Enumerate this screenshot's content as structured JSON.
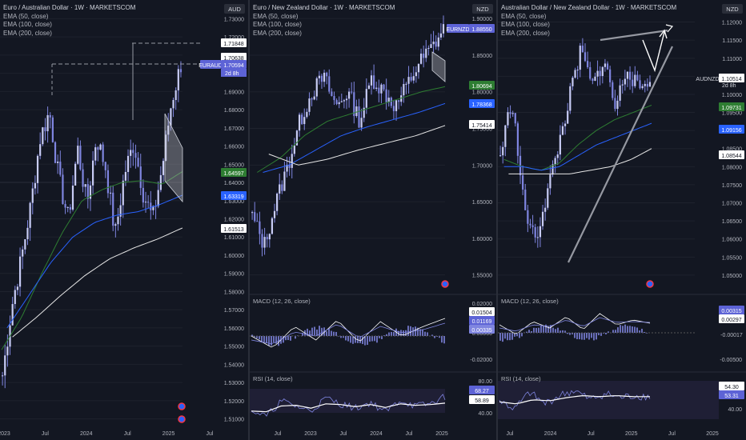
{
  "theme": {
    "bg": "#131722",
    "candle": "#7f85e0",
    "ema50": "#2e7d32",
    "ema100": "#2962ff",
    "ema200": "#e6e6e6",
    "price_tag": "#5d63d6",
    "grid": "#1e222d"
  },
  "panels": [
    {
      "title": "Euro / Australian Dollar · 1W · MARKETSCOM",
      "indicators": [
        "EMA (50, close)",
        "EMA (100, close)",
        "EMA (200, close)"
      ],
      "currency": "AUD",
      "symbol_tag": "EURAUD",
      "countdown": "2d 8h",
      "axis_ticks": [
        "1.73000",
        "1.72000",
        "1.71000",
        "1.70000",
        "1.69000",
        "1.68000",
        "1.67000",
        "1.66000",
        "1.65000",
        "1.64000",
        "1.63000",
        "1.62000",
        "1.61000",
        "1.60000",
        "1.59000",
        "1.58000",
        "1.57000",
        "1.56000",
        "1.55000",
        "1.54000",
        "1.53000",
        "1.52000",
        "1.51000"
      ],
      "x_labels": [
        "2023",
        "Jul",
        "2024",
        "Jul",
        "2025",
        "Jul"
      ],
      "labels": [
        {
          "text": "1.71848",
          "bg": "#ffffff",
          "fg": "#131722"
        },
        {
          "text": "1.70638",
          "bg": "#ffffff",
          "fg": "#131722"
        },
        {
          "text": "1.70594",
          "bg": "#5d63d6",
          "fg": "#ffffff"
        },
        {
          "text": "1.64597",
          "bg": "#2e7d32",
          "fg": "#ffffff"
        },
        {
          "text": "1.63319",
          "bg": "#2962ff",
          "fg": "#ffffff"
        },
        {
          "text": "1.61513",
          "bg": "#ffffff",
          "fg": "#131722"
        }
      ]
    },
    {
      "title": "Euro / New Zealand Dollar · 1W · MARKETSCOM",
      "indicators": [
        "EMA (50, close)",
        "EMA (100, close)",
        "EMA (200, close)"
      ],
      "currency": "NZD",
      "symbol_tag": "EURNZD",
      "axis_ticks": [
        "1.90000",
        "1.85000",
        "1.80000",
        "1.75000",
        "1.70000",
        "1.65000",
        "1.60000",
        "1.55000"
      ],
      "x_labels": [
        "Jul",
        "2023",
        "Jul",
        "2024",
        "Jul",
        "2025"
      ],
      "labels": [
        {
          "text": "1.88550",
          "bg": "#5d63d6",
          "fg": "#ffffff"
        },
        {
          "text": "1.80694",
          "bg": "#2e7d32",
          "fg": "#ffffff"
        },
        {
          "text": "1.78368",
          "bg": "#2962ff",
          "fg": "#ffffff"
        },
        {
          "text": "1.75414",
          "bg": "#ffffff",
          "fg": "#131722"
        }
      ],
      "macd": {
        "title": "MACD (12, 26, close)",
        "ticks": [
          "0.02000",
          "0.00000",
          "-0.02000"
        ],
        "labels": [
          {
            "text": "0.01504",
            "bg": "#ffffff",
            "fg": "#131722"
          },
          {
            "text": "0.01169",
            "bg": "#5d63d6",
            "fg": "#ffffff"
          },
          {
            "text": "0.00335",
            "bg": "#7f85e0",
            "fg": "#ffffff"
          }
        ]
      },
      "rsi": {
        "title": "RSI (14, close)",
        "ticks": [
          "80.00",
          "40.00"
        ],
        "labels": [
          {
            "text": "68.27",
            "bg": "#5d63d6",
            "fg": "#ffffff"
          },
          {
            "text": "58.89",
            "bg": "#ffffff",
            "fg": "#131722"
          }
        ]
      }
    },
    {
      "title": "Australian Dollar / New Zealand Dollar · 1W · MARKETSCOM",
      "indicators": [
        "EMA (50, close)",
        "EMA (100, close)",
        "EMA (200, close)"
      ],
      "currency": "NZD",
      "symbol_tag": "AUDNZD",
      "countdown": "2d 8h",
      "axis_ticks": [
        "1.12000",
        "1.11500",
        "1.11000",
        "1.10500",
        "1.10000",
        "1.09500",
        "1.09000",
        "1.08500",
        "1.08000",
        "1.07500",
        "1.07000",
        "1.06500",
        "1.06000",
        "1.05500",
        "1.05000"
      ],
      "x_labels": [
        "Jul",
        "2024",
        "Jul",
        "2025",
        "Jul",
        "2025"
      ],
      "labels": [
        {
          "text": "1.10514",
          "bg": "#ffffff",
          "fg": "#131722"
        },
        {
          "text": "1.09731",
          "bg": "#2e7d32",
          "fg": "#ffffff"
        },
        {
          "text": "1.09156",
          "bg": "#2962ff",
          "fg": "#ffffff"
        },
        {
          "text": "1.08544",
          "bg": "#ffffff",
          "fg": "#131722"
        }
      ],
      "macd": {
        "title": "MACD (12, 26, close)",
        "ticks": [
          "0.00000",
          "-0.00500"
        ],
        "labels": [
          {
            "text": "0.00315",
            "bg": "#5d63d6",
            "fg": "#ffffff"
          },
          {
            "text": "0.00297",
            "bg": "#ffffff",
            "fg": "#131722"
          },
          {
            "text": "-0.00017",
            "bg": "#131722",
            "fg": "#b2b5be"
          }
        ]
      },
      "rsi": {
        "title": "RSI (14, close)",
        "ticks": [
          "40.00"
        ],
        "labels": [
          {
            "text": "54.30",
            "bg": "#ffffff",
            "fg": "#131722"
          },
          {
            "text": "53.31",
            "bg": "#5d63d6",
            "fg": "#ffffff"
          }
        ]
      }
    }
  ],
  "chart_data": [
    {
      "type": "line",
      "title": "Euro / Australian Dollar · 1W · MARKETSCOM",
      "series": [
        {
          "name": "EURAUD",
          "values": [
            1.534,
            1.572,
            1.598,
            1.627,
            1.664,
            1.679,
            1.642,
            1.62,
            1.659,
            1.628,
            1.665,
            1.648,
            1.611,
            1.645,
            1.662,
            1.634,
            1.62,
            1.648,
            1.684,
            1.705
          ]
        },
        {
          "name": "EMA (50, close)",
          "values": [
            1.548,
            1.566,
            1.59,
            1.612,
            1.63,
            1.636,
            1.64,
            1.641,
            1.639,
            1.646
          ]
        },
        {
          "name": "EMA (100, close)",
          "values": [
            1.56,
            1.578,
            1.596,
            1.61,
            1.618,
            1.622,
            1.624,
            1.628,
            1.633
          ]
        },
        {
          "name": "EMA (200, close)",
          "values": [
            1.555,
            1.566,
            1.578,
            1.589,
            1.598,
            1.604,
            1.609,
            1.615
          ]
        }
      ],
      "ylim": [
        1.505,
        1.735
      ]
    },
    {
      "type": "line",
      "title": "Euro / New Zealand Dollar · 1W · MARKETSCOM",
      "series": [
        {
          "name": "EURNZD",
          "values": [
            1.63,
            1.59,
            1.65,
            1.7,
            1.76,
            1.8,
            1.82,
            1.78,
            1.8,
            1.76,
            1.82,
            1.8,
            1.78,
            1.81,
            1.84,
            1.86,
            1.885
          ]
        },
        {
          "name": "EMA (50, close)",
          "values": [
            1.69,
            1.71,
            1.74,
            1.76,
            1.77,
            1.78,
            1.79,
            1.8,
            1.807
          ]
        },
        {
          "name": "EMA (100, close)",
          "values": [
            1.69,
            1.7,
            1.72,
            1.74,
            1.752,
            1.762,
            1.772,
            1.784
          ]
        },
        {
          "name": "EMA (200, close)",
          "values": [
            1.715,
            1.7,
            1.708,
            1.72,
            1.73,
            1.74,
            1.754
          ]
        }
      ],
      "ylim": [
        1.53,
        1.91
      ]
    },
    {
      "type": "line",
      "title": "Australian Dollar / New Zealand Dollar · 1W · MARKETSCOM",
      "series": [
        {
          "name": "AUDNZD",
          "values": [
            1.083,
            1.099,
            1.07,
            1.059,
            1.072,
            1.085,
            1.099,
            1.112,
            1.102,
            1.11,
            1.096,
            1.108,
            1.101,
            1.105
          ]
        },
        {
          "name": "EMA (50, close)",
          "values": [
            1.082,
            1.08,
            1.079,
            1.081,
            1.086,
            1.09,
            1.093,
            1.095,
            1.097
          ]
        },
        {
          "name": "EMA (100, close)",
          "values": [
            1.08,
            1.08,
            1.079,
            1.08,
            1.083,
            1.086,
            1.088,
            1.09,
            1.092
          ]
        },
        {
          "name": "EMA (200, close)",
          "values": [
            1.078,
            1.078,
            1.078,
            1.078,
            1.079,
            1.08,
            1.082,
            1.085
          ]
        }
      ],
      "ylim": [
        1.046,
        1.123
      ]
    }
  ]
}
